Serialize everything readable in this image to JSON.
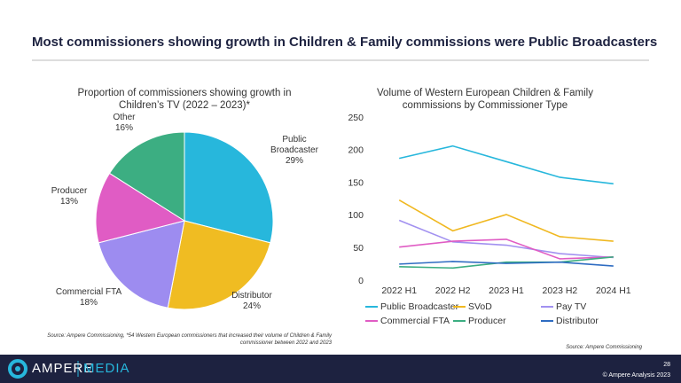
{
  "title": "Most commissioners showing growth in Children & Family commissions were Public Broadcasters",
  "chart_data": [
    {
      "type": "pie",
      "title": "Proportion of commissioners showing growth in Children’s TV (2022 – 2023)*",
      "categories": [
        "Public Broadcaster",
        "Distributor",
        "Commercial FTA",
        "Producer",
        "Other"
      ],
      "values": [
        29,
        24,
        18,
        13,
        16
      ],
      "value_labels": [
        "29%",
        "24%",
        "18%",
        "13%",
        "16%"
      ],
      "colors": [
        "#27b7dc",
        "#f0bc22",
        "#9d8cf0",
        "#e05cc4",
        "#3cae82"
      ]
    },
    {
      "type": "line",
      "title": "Volume of Western European Children & Family commissions by Commissioner Type",
      "categories": [
        "2022 H1",
        "2022 H2",
        "2023 H1",
        "2023 H2",
        "2024 H1"
      ],
      "series": [
        {
          "name": "Public Broadcaster",
          "color": "#27b7dc",
          "values": [
            188,
            207,
            183,
            159,
            149
          ]
        },
        {
          "name": "SVoD",
          "color": "#f0b820",
          "values": [
            124,
            77,
            102,
            68,
            61
          ]
        },
        {
          "name": "Pay TV",
          "color": "#a291f0",
          "values": [
            93,
            60,
            55,
            42,
            36
          ]
        },
        {
          "name": "Commercial FTA",
          "color": "#e05cc4",
          "values": [
            52,
            61,
            64,
            34,
            37
          ]
        },
        {
          "name": "Producer",
          "color": "#3cae82",
          "values": [
            22,
            20,
            29,
            29,
            37
          ]
        },
        {
          "name": "Distributor",
          "color": "#2e6cc2",
          "values": [
            26,
            30,
            27,
            29,
            23
          ]
        }
      ],
      "ylim": [
        0,
        250
      ],
      "yticks": [
        0,
        50,
        100,
        150,
        200,
        250
      ],
      "grid": false,
      "legend": "bottom"
    }
  ],
  "source_left": "Source: Ampere Commissioning, *54 Western European commissioners that increased their volume of Children & Family commissioner between 2022 and 2023",
  "source_right": "Source: Ampere Commissioning",
  "footer": {
    "brand": "AMPERE",
    "brand_sub": "MEDIA",
    "page": "28",
    "copyright": "© Ampere Analysis 2023"
  }
}
